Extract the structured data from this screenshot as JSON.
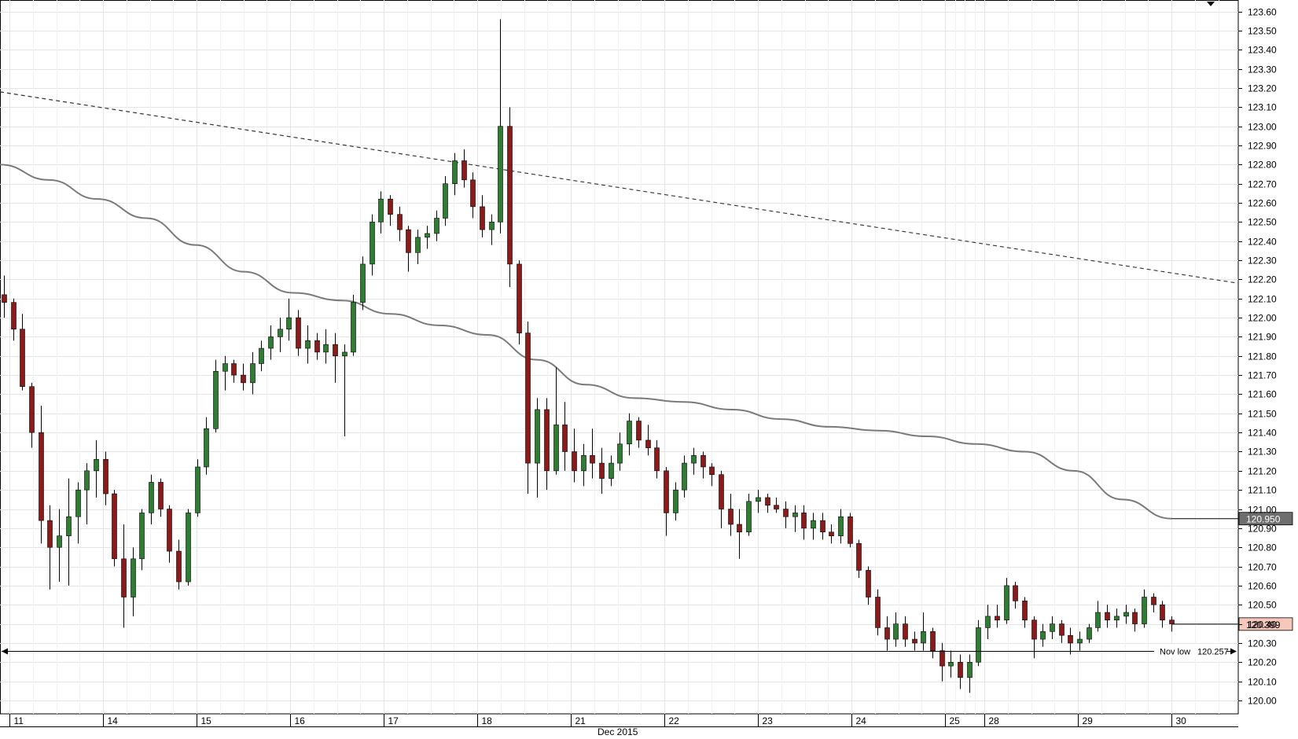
{
  "chart_data": {
    "type": "candlestick",
    "title": "",
    "xlabel": "Dec 2015",
    "ylabel": "",
    "ylim": [
      119.93,
      123.66
    ],
    "y_ticks": [
      "123.60",
      "123.50",
      "123.40",
      "123.30",
      "123.20",
      "123.10",
      "123.00",
      "122.90",
      "122.80",
      "122.70",
      "122.60",
      "122.50",
      "122.40",
      "122.30",
      "122.20",
      "122.10",
      "122.00",
      "121.90",
      "121.80",
      "121.70",
      "121.60",
      "121.50",
      "121.40",
      "121.30",
      "121.20",
      "121.10",
      "121.00",
      "120.90",
      "120.80",
      "120.70",
      "120.60",
      "120.50",
      "120.40",
      "120.30",
      "120.20",
      "120.10",
      "120.00"
    ],
    "x_ticks": [
      "11",
      "14",
      "15",
      "16",
      "17",
      "18",
      "21",
      "22",
      "23",
      "24",
      "25",
      "28",
      "29",
      "30"
    ],
    "x_axis_title": "Dec 2015",
    "moving_average_label": "120.950",
    "moving_average_value": 120.95,
    "current_price_label": "120.399",
    "current_price_value": 120.399,
    "nov_low_label": "Nov low",
    "nov_low_value_label": "120.257",
    "nov_low_value": 120.257,
    "trendline": {
      "start": 123.18,
      "end": 122.18,
      "style": "dashed"
    },
    "moving_average": [
      122.8,
      122.72,
      122.62,
      122.52,
      122.38,
      122.24,
      122.13,
      122.09,
      122.02,
      121.96,
      121.91,
      121.78,
      121.65,
      121.58,
      121.56,
      121.52,
      121.47,
      121.43,
      121.41,
      121.38,
      121.34,
      121.3,
      121.2,
      121.05,
      120.95
    ],
    "candles": [
      {
        "o": 122.12,
        "h": 122.22,
        "l": 122.0,
        "c": 122.08
      },
      {
        "o": 122.08,
        "h": 122.1,
        "l": 121.88,
        "c": 121.94
      },
      {
        "o": 121.94,
        "h": 122.02,
        "l": 121.62,
        "c": 121.64
      },
      {
        "o": 121.64,
        "h": 121.66,
        "l": 121.32,
        "c": 121.4
      },
      {
        "o": 121.4,
        "h": 121.54,
        "l": 120.82,
        "c": 120.94
      },
      {
        "o": 120.94,
        "h": 121.02,
        "l": 120.58,
        "c": 120.8
      },
      {
        "o": 120.8,
        "h": 121.0,
        "l": 120.62,
        "c": 120.86
      },
      {
        "o": 120.86,
        "h": 121.16,
        "l": 120.6,
        "c": 120.96
      },
      {
        "o": 120.96,
        "h": 121.14,
        "l": 120.82,
        "c": 121.1
      },
      {
        "o": 121.1,
        "h": 121.24,
        "l": 120.92,
        "c": 121.2
      },
      {
        "o": 121.2,
        "h": 121.36,
        "l": 121.06,
        "c": 121.26
      },
      {
        "o": 121.26,
        "h": 121.3,
        "l": 121.02,
        "c": 121.08
      },
      {
        "o": 121.08,
        "h": 121.1,
        "l": 120.7,
        "c": 120.74
      },
      {
        "o": 120.74,
        "h": 120.92,
        "l": 120.38,
        "c": 120.54
      },
      {
        "o": 120.54,
        "h": 120.8,
        "l": 120.44,
        "c": 120.74
      },
      {
        "o": 120.74,
        "h": 121.0,
        "l": 120.68,
        "c": 120.98
      },
      {
        "o": 120.98,
        "h": 121.18,
        "l": 120.92,
        "c": 121.14
      },
      {
        "o": 121.14,
        "h": 121.16,
        "l": 120.96,
        "c": 121.0
      },
      {
        "o": 121.0,
        "h": 121.02,
        "l": 120.72,
        "c": 120.78
      },
      {
        "o": 120.78,
        "h": 120.84,
        "l": 120.58,
        "c": 120.62
      },
      {
        "o": 120.62,
        "h": 121.0,
        "l": 120.6,
        "c": 120.98
      },
      {
        "o": 120.98,
        "h": 121.26,
        "l": 120.96,
        "c": 121.22
      },
      {
        "o": 121.22,
        "h": 121.48,
        "l": 121.18,
        "c": 121.42
      },
      {
        "o": 121.42,
        "h": 121.78,
        "l": 121.4,
        "c": 121.72
      },
      {
        "o": 121.72,
        "h": 121.8,
        "l": 121.62,
        "c": 121.76
      },
      {
        "o": 121.76,
        "h": 121.78,
        "l": 121.66,
        "c": 121.7
      },
      {
        "o": 121.7,
        "h": 121.76,
        "l": 121.62,
        "c": 121.66
      },
      {
        "o": 121.66,
        "h": 121.82,
        "l": 121.6,
        "c": 121.76
      },
      {
        "o": 121.76,
        "h": 121.88,
        "l": 121.72,
        "c": 121.84
      },
      {
        "o": 121.84,
        "h": 121.96,
        "l": 121.78,
        "c": 121.9
      },
      {
        "o": 121.9,
        "h": 122.0,
        "l": 121.82,
        "c": 121.94
      },
      {
        "o": 121.94,
        "h": 122.1,
        "l": 121.88,
        "c": 122.0
      },
      {
        "o": 122.0,
        "h": 122.04,
        "l": 121.8,
        "c": 121.84
      },
      {
        "o": 121.84,
        "h": 121.96,
        "l": 121.76,
        "c": 121.88
      },
      {
        "o": 121.88,
        "h": 121.92,
        "l": 121.78,
        "c": 121.82
      },
      {
        "o": 121.82,
        "h": 121.94,
        "l": 121.76,
        "c": 121.86
      },
      {
        "o": 121.86,
        "h": 121.92,
        "l": 121.66,
        "c": 121.8
      },
      {
        "o": 121.8,
        "h": 121.86,
        "l": 121.38,
        "c": 121.82
      },
      {
        "o": 121.82,
        "h": 122.12,
        "l": 121.8,
        "c": 122.08
      },
      {
        "o": 122.08,
        "h": 122.32,
        "l": 122.04,
        "c": 122.28
      },
      {
        "o": 122.28,
        "h": 122.54,
        "l": 122.22,
        "c": 122.5
      },
      {
        "o": 122.5,
        "h": 122.66,
        "l": 122.44,
        "c": 122.62
      },
      {
        "o": 122.62,
        "h": 122.64,
        "l": 122.48,
        "c": 122.54
      },
      {
        "o": 122.54,
        "h": 122.58,
        "l": 122.4,
        "c": 122.46
      },
      {
        "o": 122.46,
        "h": 122.48,
        "l": 122.24,
        "c": 122.34
      },
      {
        "o": 122.34,
        "h": 122.46,
        "l": 122.28,
        "c": 122.42
      },
      {
        "o": 122.42,
        "h": 122.48,
        "l": 122.36,
        "c": 122.44
      },
      {
        "o": 122.44,
        "h": 122.56,
        "l": 122.4,
        "c": 122.52
      },
      {
        "o": 122.52,
        "h": 122.74,
        "l": 122.48,
        "c": 122.7
      },
      {
        "o": 122.7,
        "h": 122.86,
        "l": 122.64,
        "c": 122.82
      },
      {
        "o": 122.82,
        "h": 122.88,
        "l": 122.68,
        "c": 122.72
      },
      {
        "o": 122.72,
        "h": 122.76,
        "l": 122.52,
        "c": 122.58
      },
      {
        "o": 122.58,
        "h": 122.64,
        "l": 122.42,
        "c": 122.46
      },
      {
        "o": 122.46,
        "h": 122.54,
        "l": 122.38,
        "c": 122.5
      },
      {
        "o": 122.5,
        "h": 123.56,
        "l": 122.44,
        "c": 123.0
      },
      {
        "o": 123.0,
        "h": 123.1,
        "l": 122.16,
        "c": 122.28
      },
      {
        "o": 122.28,
        "h": 122.3,
        "l": 121.86,
        "c": 121.92
      },
      {
        "o": 121.92,
        "h": 121.98,
        "l": 121.08,
        "c": 121.24
      },
      {
        "o": 121.24,
        "h": 121.58,
        "l": 121.06,
        "c": 121.52
      },
      {
        "o": 121.52,
        "h": 121.58,
        "l": 121.1,
        "c": 121.2
      },
      {
        "o": 121.2,
        "h": 121.74,
        "l": 121.18,
        "c": 121.44
      },
      {
        "o": 121.44,
        "h": 121.56,
        "l": 121.2,
        "c": 121.3
      },
      {
        "o": 121.3,
        "h": 121.42,
        "l": 121.14,
        "c": 121.2
      },
      {
        "o": 121.2,
        "h": 121.34,
        "l": 121.12,
        "c": 121.28
      },
      {
        "o": 121.28,
        "h": 121.42,
        "l": 121.16,
        "c": 121.24
      },
      {
        "o": 121.24,
        "h": 121.32,
        "l": 121.08,
        "c": 121.16
      },
      {
        "o": 121.16,
        "h": 121.28,
        "l": 121.12,
        "c": 121.24
      },
      {
        "o": 121.24,
        "h": 121.4,
        "l": 121.2,
        "c": 121.34
      },
      {
        "o": 121.34,
        "h": 121.5,
        "l": 121.28,
        "c": 121.46
      },
      {
        "o": 121.46,
        "h": 121.48,
        "l": 121.32,
        "c": 121.36
      },
      {
        "o": 121.36,
        "h": 121.44,
        "l": 121.28,
        "c": 121.32
      },
      {
        "o": 121.32,
        "h": 121.36,
        "l": 121.16,
        "c": 121.2
      },
      {
        "o": 121.2,
        "h": 121.22,
        "l": 120.86,
        "c": 120.98
      },
      {
        "o": 120.98,
        "h": 121.14,
        "l": 120.94,
        "c": 121.1
      },
      {
        "o": 121.1,
        "h": 121.28,
        "l": 121.06,
        "c": 121.24
      },
      {
        "o": 121.24,
        "h": 121.32,
        "l": 121.18,
        "c": 121.28
      },
      {
        "o": 121.28,
        "h": 121.3,
        "l": 121.16,
        "c": 121.22
      },
      {
        "o": 121.22,
        "h": 121.24,
        "l": 121.12,
        "c": 121.18
      },
      {
        "o": 121.18,
        "h": 121.2,
        "l": 120.9,
        "c": 121.0
      },
      {
        "o": 121.0,
        "h": 121.08,
        "l": 120.86,
        "c": 120.92
      },
      {
        "o": 120.92,
        "h": 121.0,
        "l": 120.74,
        "c": 120.88
      },
      {
        "o": 120.88,
        "h": 121.08,
        "l": 120.86,
        "c": 121.04
      },
      {
        "o": 121.04,
        "h": 121.1,
        "l": 120.98,
        "c": 121.06
      },
      {
        "o": 121.06,
        "h": 121.08,
        "l": 120.98,
        "c": 121.02
      },
      {
        "o": 121.02,
        "h": 121.06,
        "l": 120.98,
        "c": 121.0
      },
      {
        "o": 121.0,
        "h": 121.04,
        "l": 120.9,
        "c": 120.96
      },
      {
        "o": 120.96,
        "h": 121.02,
        "l": 120.88,
        "c": 120.98
      },
      {
        "o": 120.98,
        "h": 121.02,
        "l": 120.84,
        "c": 120.9
      },
      {
        "o": 120.9,
        "h": 120.98,
        "l": 120.84,
        "c": 120.94
      },
      {
        "o": 120.94,
        "h": 120.98,
        "l": 120.84,
        "c": 120.88
      },
      {
        "o": 120.88,
        "h": 120.92,
        "l": 120.82,
        "c": 120.86
      },
      {
        "o": 120.86,
        "h": 121.0,
        "l": 120.82,
        "c": 120.96
      },
      {
        "o": 120.96,
        "h": 120.98,
        "l": 120.8,
        "c": 120.82
      },
      {
        "o": 120.82,
        "h": 120.84,
        "l": 120.64,
        "c": 120.68
      },
      {
        "o": 120.68,
        "h": 120.7,
        "l": 120.5,
        "c": 120.54
      },
      {
        "o": 120.54,
        "h": 120.58,
        "l": 120.34,
        "c": 120.38
      },
      {
        "o": 120.38,
        "h": 120.44,
        "l": 120.26,
        "c": 120.32
      },
      {
        "o": 120.32,
        "h": 120.46,
        "l": 120.28,
        "c": 120.4
      },
      {
        "o": 120.4,
        "h": 120.44,
        "l": 120.28,
        "c": 120.32
      },
      {
        "o": 120.32,
        "h": 120.36,
        "l": 120.26,
        "c": 120.3
      },
      {
        "o": 120.3,
        "h": 120.46,
        "l": 120.26,
        "c": 120.36
      },
      {
        "o": 120.36,
        "h": 120.38,
        "l": 120.22,
        "c": 120.26
      },
      {
        "o": 120.26,
        "h": 120.3,
        "l": 120.1,
        "c": 120.18
      },
      {
        "o": 120.18,
        "h": 120.26,
        "l": 120.12,
        "c": 120.2
      },
      {
        "o": 120.2,
        "h": 120.24,
        "l": 120.06,
        "c": 120.12
      },
      {
        "o": 120.12,
        "h": 120.24,
        "l": 120.04,
        "c": 120.2
      },
      {
        "o": 120.2,
        "h": 120.42,
        "l": 120.18,
        "c": 120.38
      },
      {
        "o": 120.38,
        "h": 120.5,
        "l": 120.32,
        "c": 120.44
      },
      {
        "o": 120.44,
        "h": 120.5,
        "l": 120.38,
        "c": 120.42
      },
      {
        "o": 120.42,
        "h": 120.64,
        "l": 120.4,
        "c": 120.6
      },
      {
        "o": 120.6,
        "h": 120.62,
        "l": 120.48,
        "c": 120.52
      },
      {
        "o": 120.52,
        "h": 120.54,
        "l": 120.38,
        "c": 120.42
      },
      {
        "o": 120.42,
        "h": 120.44,
        "l": 120.22,
        "c": 120.32
      },
      {
        "o": 120.32,
        "h": 120.4,
        "l": 120.28,
        "c": 120.36
      },
      {
        "o": 120.36,
        "h": 120.44,
        "l": 120.32,
        "c": 120.4
      },
      {
        "o": 120.4,
        "h": 120.42,
        "l": 120.3,
        "c": 120.34
      },
      {
        "o": 120.34,
        "h": 120.38,
        "l": 120.24,
        "c": 120.3
      },
      {
        "o": 120.3,
        "h": 120.36,
        "l": 120.26,
        "c": 120.32
      },
      {
        "o": 120.32,
        "h": 120.4,
        "l": 120.3,
        "c": 120.38
      },
      {
        "o": 120.38,
        "h": 120.52,
        "l": 120.36,
        "c": 120.46
      },
      {
        "o": 120.46,
        "h": 120.5,
        "l": 120.38,
        "c": 120.42
      },
      {
        "o": 120.42,
        "h": 120.48,
        "l": 120.38,
        "c": 120.44
      },
      {
        "o": 120.44,
        "h": 120.5,
        "l": 120.4,
        "c": 120.46
      },
      {
        "o": 120.46,
        "h": 120.48,
        "l": 120.36,
        "c": 120.4
      },
      {
        "o": 120.4,
        "h": 120.58,
        "l": 120.38,
        "c": 120.54
      },
      {
        "o": 120.54,
        "h": 120.56,
        "l": 120.46,
        "c": 120.5
      },
      {
        "o": 120.5,
        "h": 120.52,
        "l": 120.38,
        "c": 120.42
      },
      {
        "o": 120.42,
        "h": 120.44,
        "l": 120.36,
        "c": 120.4
      }
    ]
  }
}
